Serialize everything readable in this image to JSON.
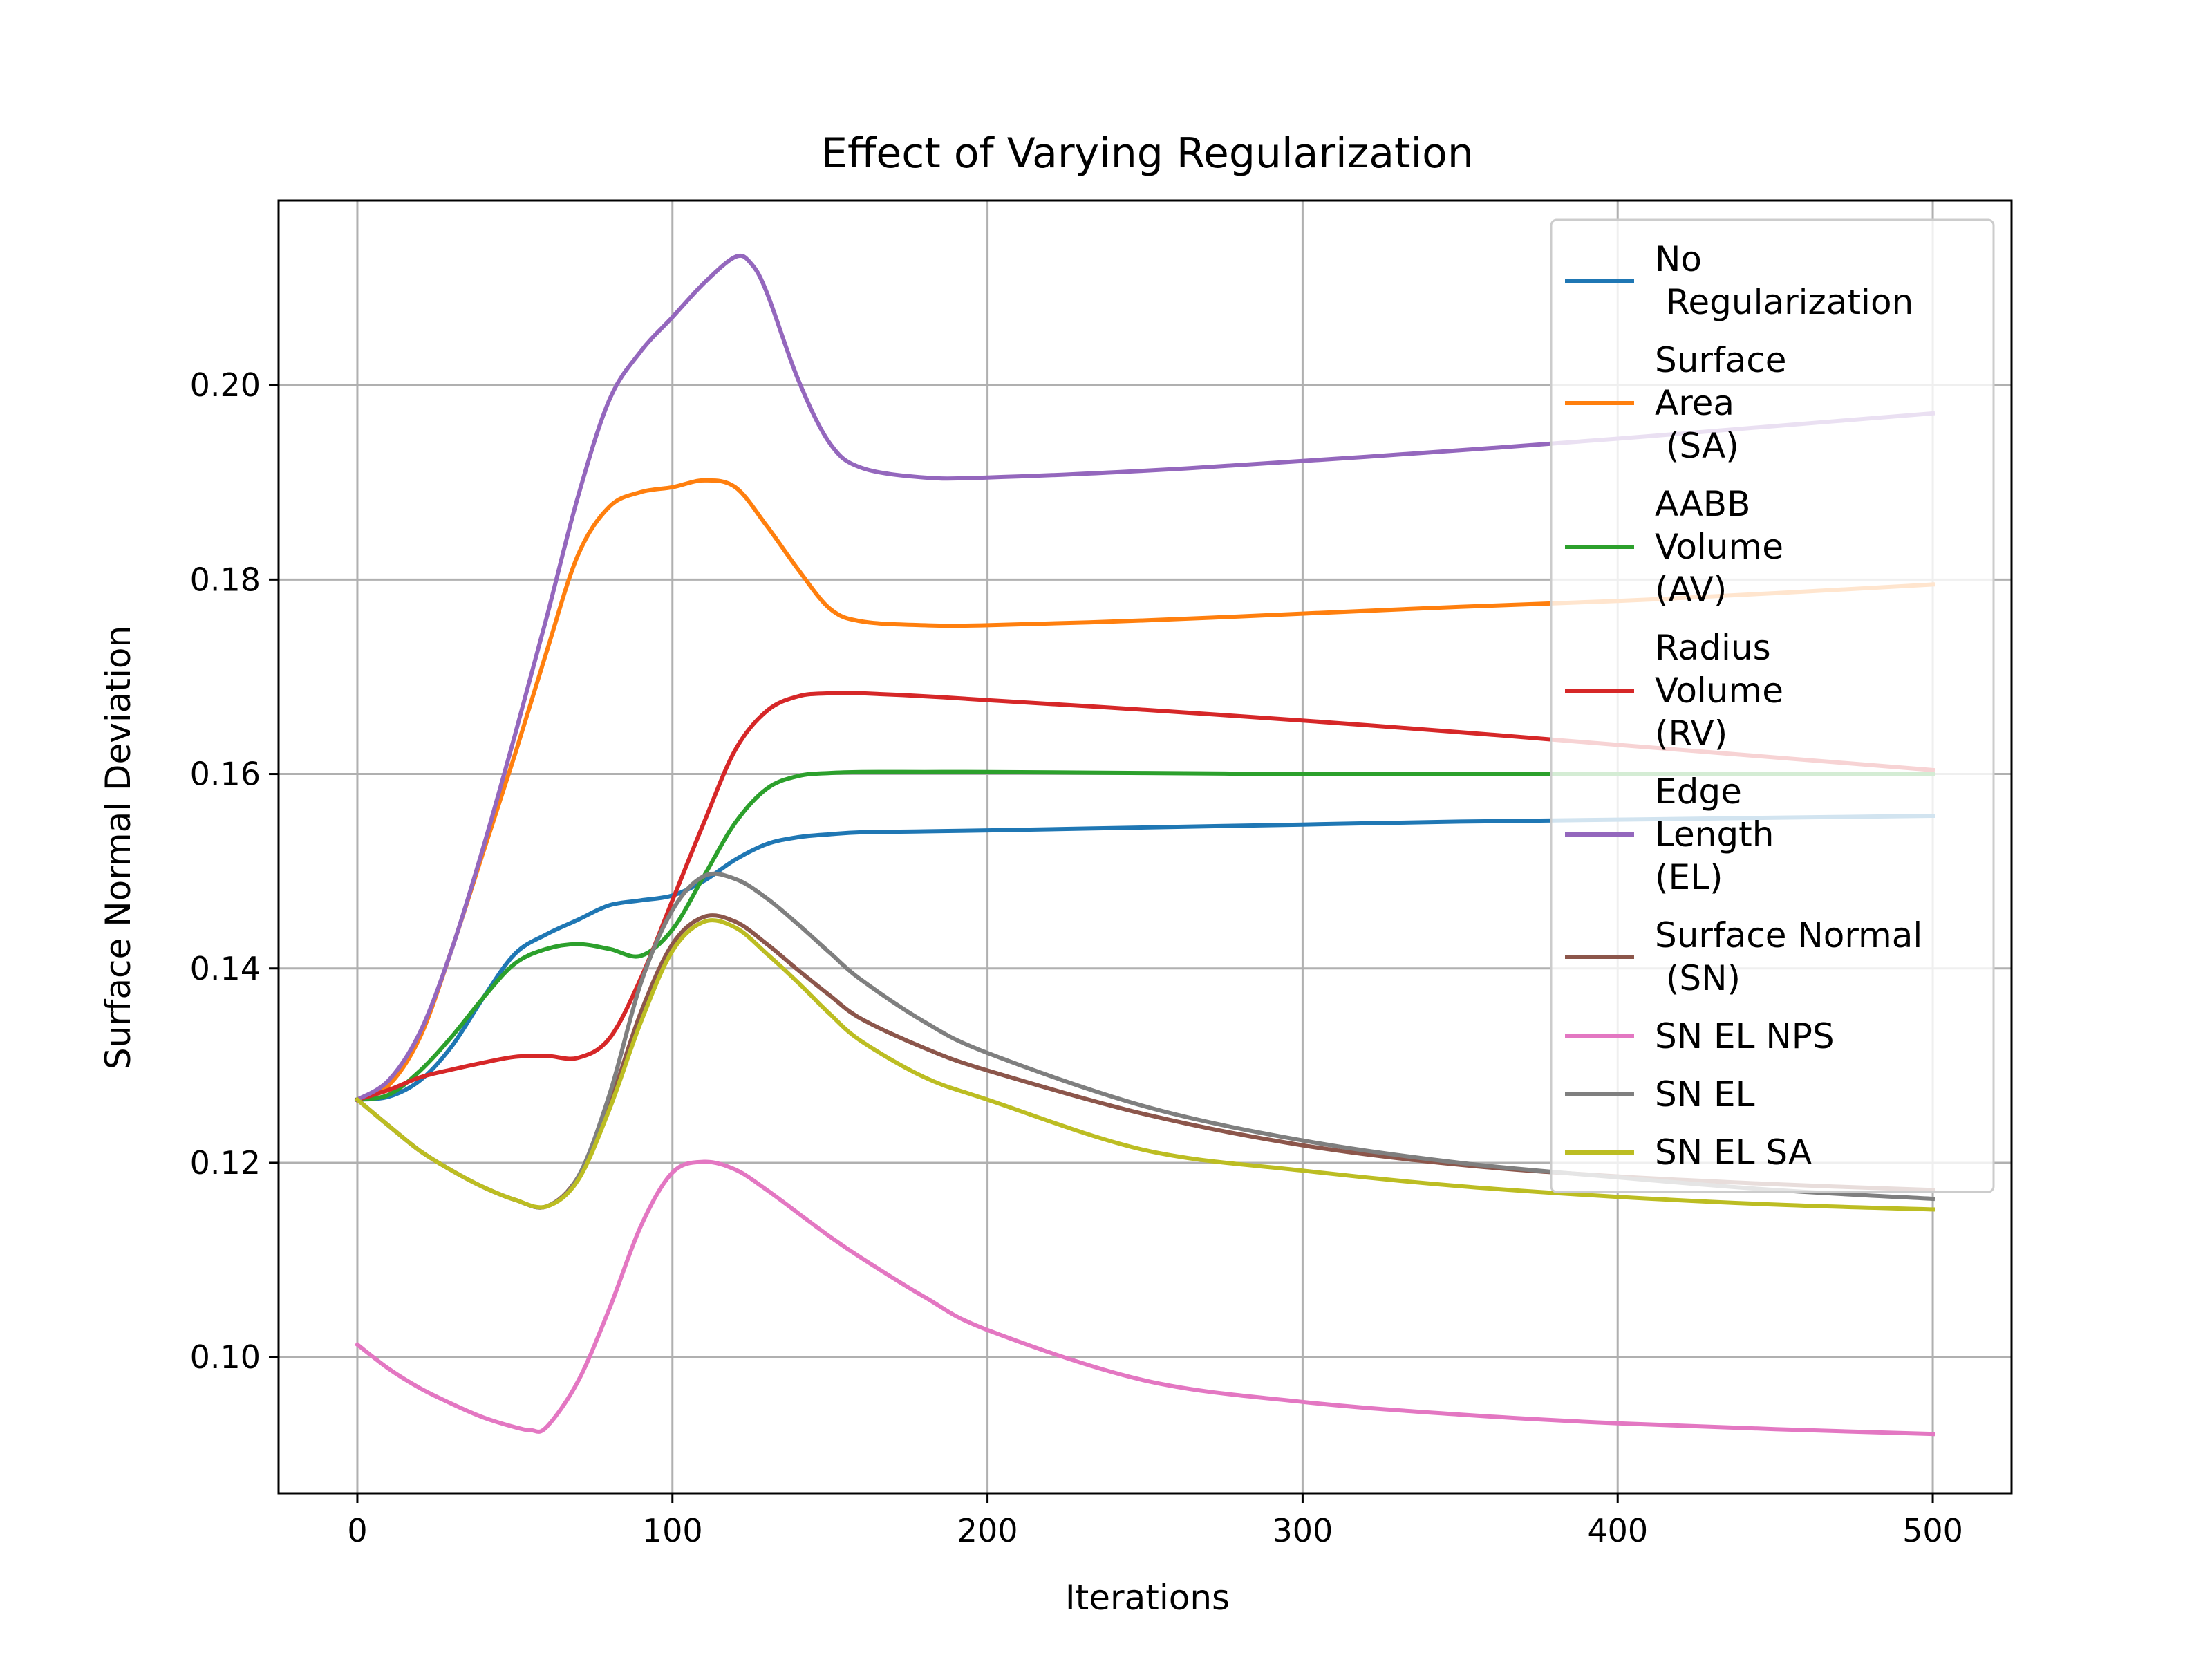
{
  "chart_data": {
    "type": "line",
    "title": "Effect of Varying Regularization",
    "xlabel": "Iterations",
    "ylabel": "Surface Normal Deviation",
    "xlim": [
      -25,
      525
    ],
    "ylim": [
      0.086,
      0.219
    ],
    "xticks": [
      0,
      100,
      200,
      300,
      400,
      500
    ],
    "xtick_labels": [
      "0",
      "100",
      "200",
      "300",
      "400",
      "500"
    ],
    "yticks": [
      0.1,
      0.12,
      0.14,
      0.16,
      0.18,
      0.2
    ],
    "ytick_labels": [
      "0.10",
      "0.12",
      "0.14",
      "0.16",
      "0.18",
      "0.20"
    ],
    "grid": true,
    "legend_position": "top-right",
    "series": [
      {
        "name": "No\n Regularization",
        "color": "#1f77b4",
        "x": [
          0,
          10,
          20,
          30,
          40,
          50,
          60,
          70,
          80,
          90,
          100,
          110,
          120,
          130,
          140,
          150,
          160,
          180,
          200,
          250,
          300,
          350,
          400,
          450,
          500
        ],
        "y": [
          0.1265,
          0.1268,
          0.1285,
          0.132,
          0.137,
          0.1415,
          0.1435,
          0.145,
          0.1465,
          0.147,
          0.1475,
          0.149,
          0.1512,
          0.1528,
          0.1535,
          0.1538,
          0.154,
          0.1541,
          0.1542,
          0.1545,
          0.1548,
          0.1551,
          0.1553,
          0.1555,
          0.1557
        ]
      },
      {
        "name": "Surface\nArea\n (SA)",
        "color": "#ff7f0e",
        "x": [
          0,
          10,
          20,
          30,
          40,
          50,
          60,
          70,
          80,
          90,
          100,
          110,
          120,
          130,
          140,
          150,
          160,
          180,
          200,
          250,
          300,
          350,
          400,
          450,
          500
        ],
        "y": [
          0.1265,
          0.128,
          0.133,
          0.142,
          0.152,
          0.162,
          0.1725,
          0.1825,
          0.1875,
          0.189,
          0.1895,
          0.1902,
          0.1895,
          0.1855,
          0.181,
          0.177,
          0.1757,
          0.1753,
          0.1753,
          0.1758,
          0.1765,
          0.1772,
          0.1778,
          0.1786,
          0.1795
        ]
      },
      {
        "name": "AABB\nVolume\n(AV)",
        "color": "#2ca02c",
        "x": [
          0,
          10,
          20,
          30,
          40,
          50,
          60,
          70,
          80,
          90,
          100,
          110,
          120,
          130,
          140,
          150,
          160,
          180,
          200,
          250,
          300,
          350,
          400,
          450,
          500
        ],
        "y": [
          0.1265,
          0.127,
          0.1295,
          0.133,
          0.137,
          0.1405,
          0.142,
          0.1425,
          0.142,
          0.1413,
          0.144,
          0.1495,
          0.155,
          0.1585,
          0.1598,
          0.1601,
          0.1602,
          0.1602,
          0.1602,
          0.1601,
          0.16,
          0.16,
          0.16,
          0.16,
          0.16
        ]
      },
      {
        "name": "Radius\nVolume\n(RV)",
        "color": "#d62728",
        "x": [
          0,
          10,
          20,
          30,
          40,
          50,
          60,
          70,
          80,
          90,
          100,
          110,
          120,
          130,
          140,
          150,
          160,
          180,
          200,
          250,
          300,
          350,
          400,
          450,
          500
        ],
        "y": [
          0.1265,
          0.1275,
          0.1288,
          0.1296,
          0.1303,
          0.1309,
          0.131,
          0.1308,
          0.1328,
          0.139,
          0.147,
          0.155,
          0.1625,
          0.1665,
          0.168,
          0.1683,
          0.1683,
          0.168,
          0.1676,
          0.1666,
          0.1655,
          0.1643,
          0.163,
          0.1617,
          0.1604
        ]
      },
      {
        "name": "Edge\nLength\n(EL)",
        "color": "#9467bd",
        "x": [
          0,
          10,
          20,
          30,
          40,
          50,
          60,
          70,
          80,
          90,
          100,
          110,
          120,
          125,
          130,
          140,
          150,
          160,
          180,
          200,
          250,
          300,
          350,
          400,
          450,
          500
        ],
        "y": [
          0.1265,
          0.1285,
          0.1335,
          0.142,
          0.1525,
          0.164,
          0.176,
          0.1885,
          0.1985,
          0.2035,
          0.207,
          0.2105,
          0.2132,
          0.2125,
          0.2095,
          0.2005,
          0.194,
          0.1915,
          0.1905,
          0.1905,
          0.1912,
          0.1922,
          0.1933,
          0.1945,
          0.1958,
          0.1971
        ]
      },
      {
        "name": "Surface Normal\n (SN)",
        "color": "#8c564b",
        "x": [
          0,
          10,
          20,
          30,
          40,
          50,
          60,
          70,
          80,
          90,
          100,
          110,
          120,
          130,
          140,
          150,
          160,
          180,
          200,
          250,
          300,
          350,
          400,
          450,
          500
        ],
        "y": [
          0.1265,
          0.1238,
          0.1212,
          0.1192,
          0.1175,
          0.1162,
          0.1155,
          0.1185,
          0.126,
          0.1355,
          0.1425,
          0.1453,
          0.1448,
          0.1425,
          0.1398,
          0.1372,
          0.1348,
          0.1318,
          0.1295,
          0.125,
          0.1218,
          0.1198,
          0.1186,
          0.1178,
          0.1172
        ]
      },
      {
        "name": "SN EL NPS",
        "color": "#e377c2",
        "x": [
          0,
          10,
          20,
          30,
          40,
          50,
          55,
          60,
          70,
          80,
          90,
          100,
          110,
          120,
          130,
          140,
          150,
          160,
          180,
          200,
          250,
          300,
          350,
          400,
          450,
          500
        ],
        "y": [
          0.1013,
          0.0988,
          0.0968,
          0.0952,
          0.0938,
          0.0928,
          0.0925,
          0.0928,
          0.0975,
          0.105,
          0.1135,
          0.119,
          0.1201,
          0.1193,
          0.1172,
          0.1148,
          0.1124,
          0.1102,
          0.1062,
          0.1028,
          0.0976,
          0.0954,
          0.0941,
          0.0932,
          0.0926,
          0.0921
        ]
      },
      {
        "name": "SN EL",
        "color": "#7f7f7f",
        "x": [
          0,
          10,
          20,
          30,
          40,
          50,
          60,
          70,
          80,
          90,
          100,
          110,
          120,
          130,
          140,
          150,
          160,
          180,
          200,
          250,
          300,
          350,
          400,
          450,
          500
        ],
        "y": [
          0.1265,
          0.1238,
          0.1212,
          0.1192,
          0.1175,
          0.1162,
          0.1155,
          0.1185,
          0.127,
          0.1385,
          0.146,
          0.1495,
          0.1492,
          0.1472,
          0.1445,
          0.1416,
          0.1388,
          0.1345,
          0.1313,
          0.1258,
          0.1223,
          0.12,
          0.1185,
          0.1172,
          0.1163
        ]
      },
      {
        "name": "SN EL SA",
        "color": "#bcbd22",
        "x": [
          0,
          10,
          20,
          30,
          40,
          50,
          60,
          70,
          80,
          90,
          100,
          110,
          120,
          130,
          140,
          150,
          160,
          180,
          200,
          250,
          300,
          350,
          400,
          450,
          500
        ],
        "y": [
          0.1265,
          0.1238,
          0.1212,
          0.1192,
          0.1175,
          0.1162,
          0.1155,
          0.1182,
          0.1255,
          0.1345,
          0.1418,
          0.1448,
          0.1442,
          0.1415,
          0.1385,
          0.1353,
          0.1325,
          0.1288,
          0.1265,
          0.1213,
          0.1192,
          0.1176,
          0.1165,
          0.1157,
          0.1152
        ]
      }
    ]
  }
}
